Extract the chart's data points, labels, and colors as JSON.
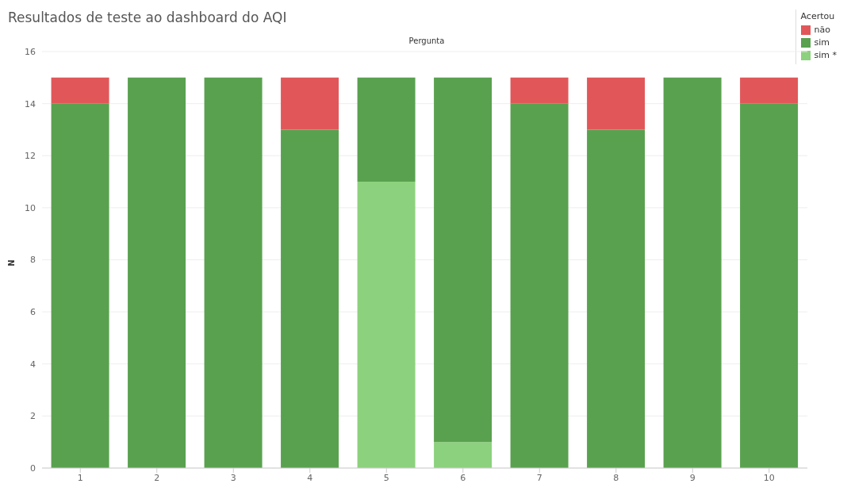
{
  "chart_data": {
    "type": "bar",
    "title": "Resultados de teste ao dashboard do AQI",
    "xlabel": "Pergunta",
    "ylabel": "N",
    "legend_title": "Acertou",
    "categories": [
      "1",
      "2",
      "3",
      "4",
      "5",
      "6",
      "7",
      "8",
      "9",
      "10"
    ],
    "stacked": true,
    "series": [
      {
        "name": "sim *",
        "color": "#8cd17d",
        "values": [
          0,
          0,
          0,
          0,
          11,
          1,
          0,
          0,
          0,
          0
        ]
      },
      {
        "name": "sim",
        "color": "#59a14f",
        "values": [
          14,
          15,
          15,
          13,
          4,
          14,
          14,
          13,
          15,
          14
        ]
      },
      {
        "name": "não",
        "color": "#e15759",
        "values": [
          1,
          0,
          0,
          2,
          0,
          0,
          1,
          2,
          0,
          1
        ]
      }
    ],
    "ylim": [
      0,
      16
    ],
    "yticks": [
      0,
      2,
      4,
      6,
      8,
      10,
      12,
      14,
      16
    ],
    "grid": "y",
    "legend": "top right"
  }
}
